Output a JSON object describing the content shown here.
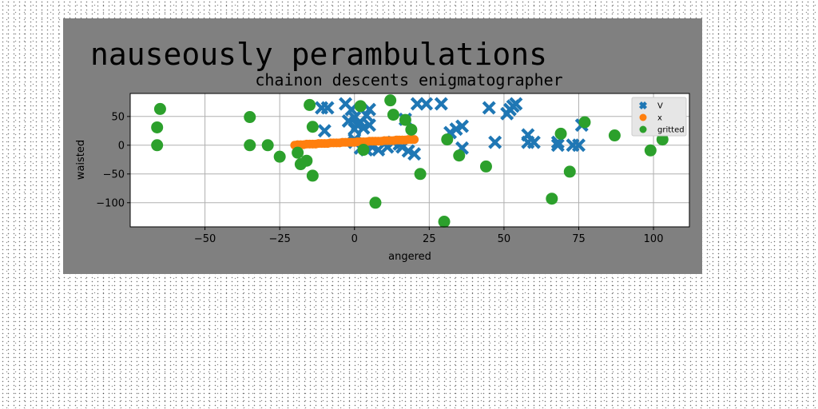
{
  "chart_data": {
    "type": "scatter",
    "suptitle": "nauseously perambulations",
    "title": "chainon descents enigmatographer",
    "xlabel": "angered",
    "ylabel": "waisted",
    "xlim": [
      -75,
      112
    ],
    "ylim": [
      -142,
      90
    ],
    "xticks": [
      -50,
      -25,
      0,
      25,
      50,
      75,
      100
    ],
    "yticks": [
      50,
      0,
      -50,
      -100
    ],
    "grid": true,
    "legend_position": "top-right",
    "series": [
      {
        "name": "V",
        "marker": "x",
        "color": "#1f77b4",
        "points": [
          [
            -11,
            65
          ],
          [
            -9,
            65
          ],
          [
            -10,
            25
          ],
          [
            -3,
            72
          ],
          [
            -1,
            62
          ],
          [
            -2,
            42
          ],
          [
            0,
            48
          ],
          [
            1,
            35
          ],
          [
            0,
            28
          ],
          [
            2,
            40
          ],
          [
            3,
            30
          ],
          [
            4,
            52
          ],
          [
            5,
            35
          ],
          [
            5,
            62
          ],
          [
            0,
            10
          ],
          [
            0,
            5
          ],
          [
            2,
            -5
          ],
          [
            4,
            -8
          ],
          [
            6,
            -3
          ],
          [
            8,
            -8
          ],
          [
            11,
            -3
          ],
          [
            13,
            5
          ],
          [
            15,
            2
          ],
          [
            16,
            -3
          ],
          [
            18,
            -10
          ],
          [
            20,
            -15
          ],
          [
            17,
            45
          ],
          [
            21,
            72
          ],
          [
            24,
            72
          ],
          [
            29,
            72
          ],
          [
            32,
            22
          ],
          [
            34,
            28
          ],
          [
            36,
            33
          ],
          [
            36,
            -5
          ],
          [
            45,
            65
          ],
          [
            47,
            5
          ],
          [
            51,
            55
          ],
          [
            52,
            62
          ],
          [
            53,
            68
          ],
          [
            54,
            72
          ],
          [
            58,
            18
          ],
          [
            58,
            5
          ],
          [
            60,
            5
          ],
          [
            68,
            5
          ],
          [
            68,
            0
          ],
          [
            73,
            0
          ],
          [
            75,
            0
          ],
          [
            76,
            35
          ]
        ]
      },
      {
        "name": "x",
        "marker": "o",
        "color": "#ff7f0e",
        "points": [
          [
            -20,
            0
          ],
          [
            -19,
            1
          ],
          [
            -18,
            1
          ],
          [
            -17,
            1
          ],
          [
            -16,
            2
          ],
          [
            -15,
            2
          ],
          [
            -14,
            2
          ],
          [
            -13,
            2
          ],
          [
            -12,
            3
          ],
          [
            -11,
            3
          ],
          [
            -10,
            3
          ],
          [
            -9,
            3
          ],
          [
            -8,
            4
          ],
          [
            -7,
            4
          ],
          [
            -6,
            4
          ],
          [
            -5,
            4
          ],
          [
            -4,
            5
          ],
          [
            -3,
            5
          ],
          [
            -2,
            5
          ],
          [
            -1,
            5
          ],
          [
            0,
            5
          ],
          [
            1,
            6
          ],
          [
            2,
            6
          ],
          [
            3,
            6
          ],
          [
            4,
            6
          ],
          [
            5,
            7
          ],
          [
            6,
            7
          ],
          [
            7,
            7
          ],
          [
            8,
            7
          ],
          [
            9,
            7
          ],
          [
            10,
            8
          ],
          [
            11,
            8
          ],
          [
            12,
            8
          ],
          [
            13,
            8
          ],
          [
            14,
            9
          ],
          [
            15,
            9
          ],
          [
            16,
            9
          ],
          [
            17,
            9
          ],
          [
            18,
            10
          ],
          [
            19,
            10
          ],
          [
            20,
            10
          ]
        ]
      },
      {
        "name": "gritted",
        "marker": "o",
        "color": "#2ca02c",
        "points": [
          [
            -65,
            63
          ],
          [
            -66,
            31
          ],
          [
            -66,
            0
          ],
          [
            -35,
            49
          ],
          [
            -35,
            0
          ],
          [
            -29,
            0
          ],
          [
            -25,
            -20
          ],
          [
            -19,
            -13
          ],
          [
            -18,
            -33
          ],
          [
            -16,
            -27
          ],
          [
            -15,
            70
          ],
          [
            -14,
            32
          ],
          [
            -14,
            -53
          ],
          [
            2,
            68
          ],
          [
            12,
            78
          ],
          [
            13,
            53
          ],
          [
            17,
            44
          ],
          [
            19,
            27
          ],
          [
            3,
            -8
          ],
          [
            7,
            -100
          ],
          [
            22,
            -50
          ],
          [
            30,
            -133
          ],
          [
            31,
            10
          ],
          [
            35,
            -18
          ],
          [
            44,
            -37
          ],
          [
            66,
            -93
          ],
          [
            69,
            20
          ],
          [
            72,
            -46
          ],
          [
            77,
            40
          ],
          [
            87,
            17
          ],
          [
            99,
            -9
          ],
          [
            103,
            10
          ]
        ]
      }
    ]
  }
}
